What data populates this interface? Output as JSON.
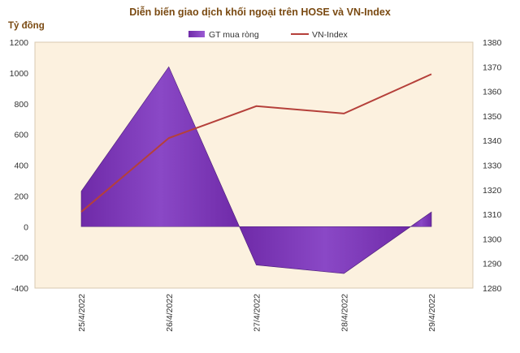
{
  "chart_data": {
    "type": "area+line",
    "title": "Diễn biến giao dịch khối ngoại trên HOSE và VN-Index",
    "ylabel_left": "Tỷ đồng",
    "categories": [
      "25/4/2022",
      "26/4/2022",
      "27/4/2022",
      "28/4/2022",
      "29/4/2022"
    ],
    "series": [
      {
        "name": "GT mua ròng",
        "type": "area",
        "axis": "left",
        "color": "#7a35b5",
        "values": [
          230,
          1040,
          -250,
          -305,
          95
        ]
      },
      {
        "name": "VN-Index",
        "type": "line",
        "axis": "right",
        "color": "#b5403a",
        "values": [
          1311,
          1341,
          1354,
          1351,
          1367
        ]
      }
    ],
    "y_left": {
      "min": -400,
      "max": 1200,
      "step": 200
    },
    "y_right": {
      "min": 1280,
      "max": 1380,
      "step": 10
    },
    "legend_position": "top",
    "plot_background": "#fcf1df"
  }
}
